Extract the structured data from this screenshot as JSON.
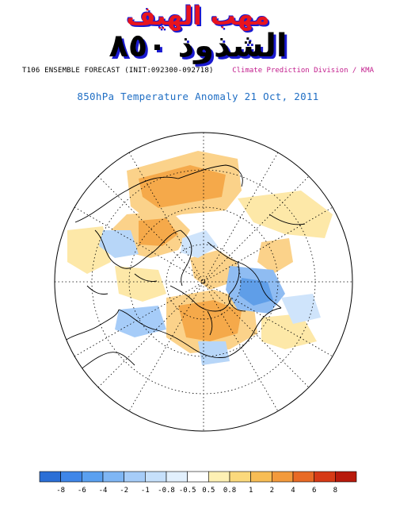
{
  "watermark": {
    "line1": "مهب الهيف",
    "line2": "الشذوذ ٨٥٠"
  },
  "header": {
    "model_text": "T106 ENSEMBLE FORECAST (INIT:092300-092718)",
    "credit": "Climate Prediction Division / KMA"
  },
  "map": {
    "title": "850hPa Temperature Anomaly 21 Oct, 2011",
    "projection": "north-polar-stereographic",
    "coastline_color": "#000000",
    "gridline_style": "dotted"
  },
  "colorbar": {
    "tick_labels": [
      "-8",
      "-6",
      "-4",
      "-2",
      "-1",
      "-0.8",
      "-0.5",
      "0.5",
      "0.8",
      "1",
      "2",
      "4",
      "6",
      "8"
    ],
    "colors": [
      "#2b6fd6",
      "#3f86e8",
      "#5aa0f0",
      "#7fb6f4",
      "#a6ccf8",
      "#c6e0fb",
      "#e2f0fd",
      "#ffffff",
      "#fdf0b4",
      "#fbd97c",
      "#f7bd55",
      "#f39a3c",
      "#e86a25",
      "#d63a16",
      "#b81a0c"
    ]
  }
}
